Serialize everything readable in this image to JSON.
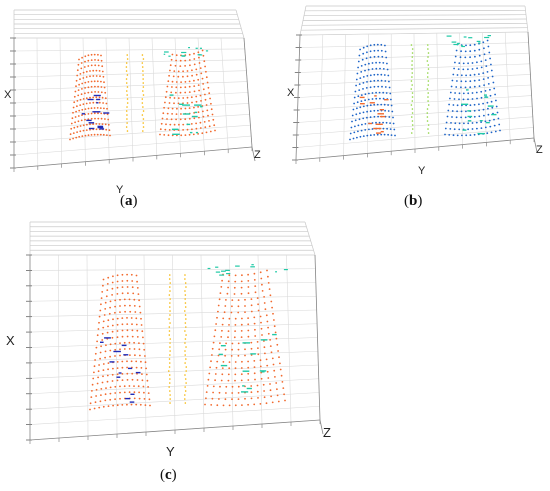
{
  "panels": [
    {
      "id": "a",
      "caption_open": "(",
      "caption_letter": "a",
      "caption_close": ")",
      "axis_labels": {
        "x": "X",
        "y": "Y",
        "z": "Z"
      },
      "point_color": "#f26a2e",
      "accent_colors": [
        "#1f2bb8",
        "#20c9a6",
        "#f5b400"
      ]
    },
    {
      "id": "b",
      "caption_open": "(",
      "caption_letter": "b",
      "caption_close": ")",
      "axis_labels": {
        "x": "X",
        "y": "Y",
        "z": "Z"
      },
      "point_color": "#1d64c8",
      "accent_colors": [
        "#f26a2e",
        "#20c9a6",
        "#8ad23a"
      ]
    },
    {
      "id": "c",
      "caption_open": "(",
      "caption_letter": "c",
      "caption_close": ")",
      "axis_labels": {
        "x": "X",
        "y": "Y",
        "z": "Z"
      },
      "point_color": "#f26a2e",
      "accent_colors": [
        "#1f2bb8",
        "#20c9a6",
        "#f5b400"
      ]
    }
  ]
}
